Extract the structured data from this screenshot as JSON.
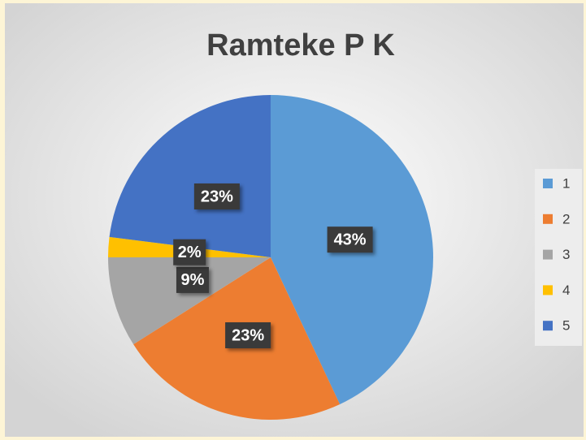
{
  "chart_data": {
    "type": "pie",
    "title": "Ramteke P K",
    "categories": [
      "1",
      "2",
      "3",
      "4",
      "5"
    ],
    "values": [
      43,
      23,
      9,
      2,
      23
    ],
    "value_labels": [
      "43%",
      "23%",
      "9%",
      "2%",
      "23%"
    ],
    "colors": [
      "#5b9bd5",
      "#ed7d31",
      "#a5a5a5",
      "#ffc000",
      "#4472c4"
    ],
    "legend": "right"
  }
}
